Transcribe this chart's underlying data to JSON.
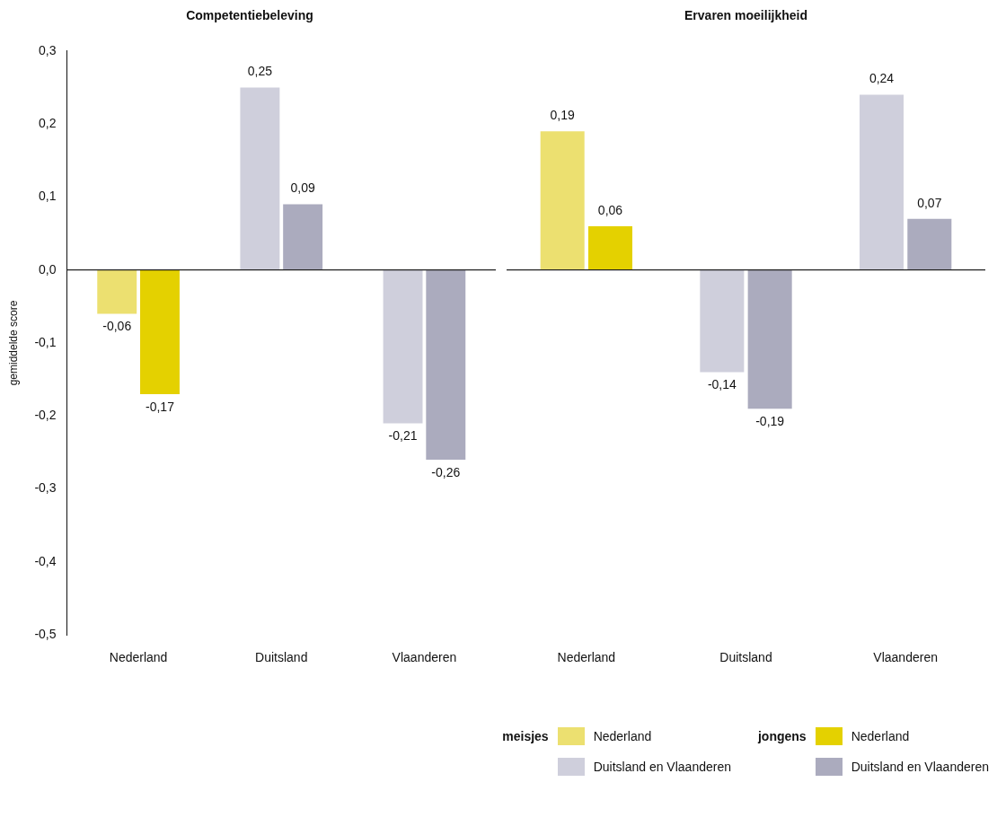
{
  "chart_data": [
    {
      "type": "bar",
      "title": "Competentiebeleving",
      "ylabel": "gemiddelde score",
      "categories": [
        "Nederland",
        "Duitsland",
        "Vlaanderen"
      ],
      "series": [
        {
          "color": "#ece070",
          "values": [
            -0.06,
            null,
            null
          ],
          "value_labels": [
            "-0,06",
            null,
            null
          ]
        },
        {
          "color": "#cfcfdc",
          "values": [
            null,
            0.25,
            -0.21
          ],
          "value_labels": [
            null,
            "0,25",
            "-0,21"
          ]
        },
        {
          "color": "#e4d100",
          "values": [
            -0.17,
            null,
            null
          ],
          "value_labels": [
            "-0,17",
            null,
            null
          ]
        },
        {
          "color": "#ababbe",
          "values": [
            null,
            0.09,
            -0.26
          ],
          "value_labels": [
            null,
            "0,09",
            "-0,26"
          ]
        }
      ],
      "ylim": [
        -0.5,
        0.3
      ],
      "yticks": [
        {
          "value": 0.3,
          "label": "0,3"
        },
        {
          "value": 0.2,
          "label": "0,2"
        },
        {
          "value": 0.1,
          "label": "0,1"
        },
        {
          "value": 0,
          "label": "0,0"
        },
        {
          "value": -0.1,
          "label": "-0,1"
        },
        {
          "value": -0.2,
          "label": "-0,2"
        },
        {
          "value": -0.3,
          "label": "-0,3"
        },
        {
          "value": -0.4,
          "label": "-0,4"
        },
        {
          "value": -0.5,
          "label": "-0,5"
        }
      ],
      "ref_lines": [
        {
          "axis": "y",
          "value": 0,
          "color": "#222222"
        }
      ],
      "grid": false,
      "legend": false
    },
    {
      "type": "bar",
      "title": "Ervaren moeilijkheid",
      "categories": [
        "Nederland",
        "Duitsland",
        "Vlaanderen"
      ],
      "series": [
        {
          "name": "Nederland",
          "color": "#ece070",
          "values": [
            0.19,
            null,
            null
          ],
          "value_labels": [
            "0,19",
            null,
            null
          ]
        },
        {
          "name": "Duitsland en Vlaanderen",
          "color": "#cfcfdc",
          "values": [
            null,
            -0.14,
            0.24
          ],
          "value_labels": [
            null,
            "-0,14",
            "0,24"
          ]
        },
        {
          "name": "Nederland",
          "color": "#e4d100",
          "values": [
            0.06,
            null,
            null
          ],
          "value_labels": [
            "0,06",
            null,
            null
          ]
        },
        {
          "name": "Duitsland en Vlaanderen",
          "color": "#ababbe",
          "values": [
            null,
            -0.19,
            0.07
          ],
          "value_labels": [
            null,
            "-0,19",
            "0,07"
          ]
        }
      ],
      "ylim": [
        -0.5,
        0.3
      ],
      "tick_labels": "x",
      "ref_lines": [
        {
          "axis": "y",
          "value": 0,
          "color": "#222222"
        }
      ],
      "grid": false,
      "legend": "bottom right",
      "annotations": [
        "meisjes",
        "jongens"
      ]
    }
  ]
}
